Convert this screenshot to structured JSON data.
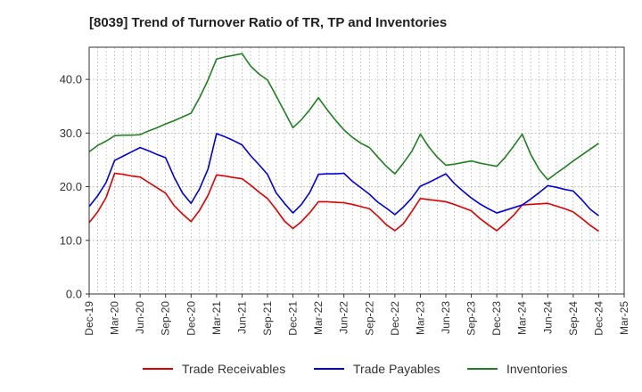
{
  "chart_data": {
    "type": "line",
    "title": "[8039]  Trend of Turnover Ratio of TR, TP and Inventories",
    "xlabel": "",
    "ylabel": "",
    "ylim": [
      0,
      46
    ],
    "yticks": [
      "0.0",
      "10.0",
      "20.0",
      "30.0",
      "40.0"
    ],
    "grid": true,
    "legend_position": "bottom",
    "x_tick_labels": [
      "Dec-19",
      "Mar-20",
      "Jun-20",
      "Sep-20",
      "Dec-20",
      "Mar-21",
      "Jun-21",
      "Sep-21",
      "Dec-21",
      "Mar-22",
      "Jun-22",
      "Sep-22",
      "Dec-22",
      "Mar-23",
      "Jun-23",
      "Sep-23",
      "Dec-23",
      "Mar-24",
      "Jun-24",
      "Sep-24",
      "Dec-24",
      "Mar-25"
    ],
    "x": [
      "Dec-19",
      "Jan-20",
      "Feb-20",
      "Mar-20",
      "Apr-20",
      "May-20",
      "Jun-20",
      "Jul-20",
      "Aug-20",
      "Sep-20",
      "Oct-20",
      "Nov-20",
      "Dec-20",
      "Jan-21",
      "Feb-21",
      "Mar-21",
      "Apr-21",
      "May-21",
      "Jun-21",
      "Jul-21",
      "Aug-21",
      "Sep-21",
      "Oct-21",
      "Nov-21",
      "Dec-21",
      "Jan-22",
      "Feb-22",
      "Mar-22",
      "Apr-22",
      "May-22",
      "Jun-22",
      "Jul-22",
      "Aug-22",
      "Sep-22",
      "Oct-22",
      "Nov-22",
      "Dec-22",
      "Jan-23",
      "Feb-23",
      "Mar-23",
      "Apr-23",
      "May-23",
      "Jun-23",
      "Jul-23",
      "Aug-23",
      "Sep-23",
      "Oct-23",
      "Nov-23",
      "Dec-23",
      "Jan-24",
      "Feb-24",
      "Mar-24",
      "Apr-24",
      "May-24",
      "Jun-24",
      "Jul-24",
      "Aug-24",
      "Sep-24",
      "Oct-24",
      "Nov-24",
      "Dec-24"
    ],
    "series": [
      {
        "name": "Trade Receivables",
        "color": "#e00000",
        "values": [
          13.3,
          15.3,
          18.0,
          22.5,
          22.3,
          22.0,
          21.8,
          20.8,
          19.8,
          18.8,
          16.5,
          14.9,
          13.5,
          15.6,
          18.4,
          22.2,
          22.0,
          21.7,
          21.5,
          20.3,
          19.0,
          17.8,
          15.8,
          13.6,
          12.2,
          13.5,
          15.2,
          17.2,
          17.2,
          17.1,
          17.0,
          16.7,
          16.3,
          15.9,
          14.5,
          12.9,
          11.8,
          13.1,
          15.4,
          17.8,
          17.6,
          17.4,
          17.2,
          16.7,
          16.1,
          15.5,
          14.1,
          12.9,
          11.8,
          13.2,
          14.7,
          16.6,
          16.7,
          16.8,
          16.9,
          16.4,
          15.9,
          15.3,
          14.1,
          12.8,
          11.7
        ]
      },
      {
        "name": "Trade Payables",
        "color": "#0000e0",
        "values": [
          16.3,
          18.3,
          20.8,
          24.9,
          25.7,
          26.5,
          27.3,
          26.7,
          26.0,
          25.4,
          21.8,
          18.8,
          16.9,
          19.6,
          23.3,
          29.9,
          29.3,
          28.6,
          27.8,
          25.8,
          24.1,
          22.3,
          18.9,
          16.9,
          15.1,
          16.7,
          19.0,
          22.3,
          22.4,
          22.4,
          22.5,
          21.0,
          19.8,
          18.6,
          17.1,
          16.0,
          14.8,
          16.2,
          17.9,
          20.1,
          20.8,
          21.6,
          22.4,
          20.6,
          19.2,
          17.9,
          16.8,
          15.9,
          15.1,
          15.6,
          16.1,
          16.6,
          17.7,
          18.9,
          20.2,
          19.9,
          19.5,
          19.2,
          17.6,
          15.8,
          14.6
        ]
      },
      {
        "name": "Inventories",
        "color": "#208020",
        "values": [
          26.5,
          27.7,
          28.5,
          29.5,
          29.6,
          29.6,
          29.7,
          30.4,
          31.0,
          31.7,
          32.3,
          33.0,
          33.7,
          36.6,
          39.9,
          43.8,
          44.2,
          44.5,
          44.8,
          42.5,
          41.0,
          39.9,
          37.0,
          34.0,
          31.0,
          32.5,
          34.4,
          36.6,
          34.4,
          32.4,
          30.6,
          29.2,
          28.1,
          27.3,
          25.5,
          23.8,
          22.4,
          24.4,
          26.6,
          29.8,
          27.4,
          25.5,
          24.0,
          24.2,
          24.5,
          24.8,
          24.4,
          24.1,
          23.8,
          25.5,
          27.6,
          29.8,
          26.0,
          23.2,
          21.3,
          22.5,
          23.6,
          24.8,
          25.9,
          27.0,
          28.1
        ]
      }
    ]
  }
}
